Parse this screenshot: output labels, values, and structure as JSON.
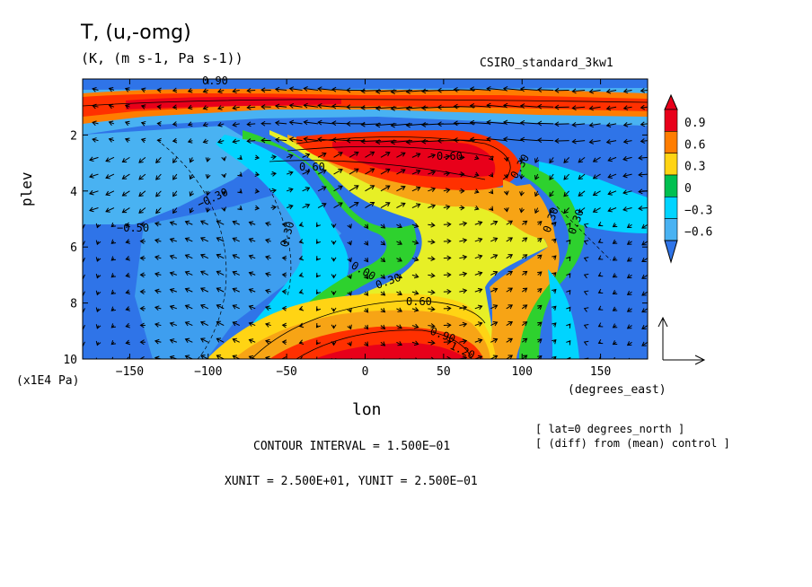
{
  "chart_data": {
    "type": "heatmap",
    "title": "T, (u,-omg)",
    "units_line": "(K, (m s-1, Pa s-1))",
    "source_label": "CSIRO_standard_3kw1",
    "xlabel": "lon",
    "ylabel": "plev",
    "x_units": "(degrees_east)",
    "y_units": "(x1E4 Pa)",
    "xlim": [
      -180,
      180
    ],
    "ylim": [
      10,
      0
    ],
    "x_ticks": [
      -150,
      -100,
      -50,
      0,
      50,
      100,
      150
    ],
    "x_tick_labels": [
      "−150",
      "−100",
      "−50",
      "0",
      "50",
      "100",
      "150"
    ],
    "y_ticks": [
      2,
      4,
      6,
      8,
      10
    ],
    "y_tick_labels": [
      "2",
      "4",
      "6",
      "8",
      "10"
    ],
    "colorbar": {
      "levels": [
        -0.6,
        -0.3,
        0,
        0.3,
        0.6,
        0.9
      ],
      "labels": [
        "−0.6",
        "−0.3",
        "0",
        "0.3",
        "0.6",
        "0.9"
      ],
      "colors": [
        "#2f74e8",
        "#49b2f2",
        "#40c8f2",
        "#00d4ff",
        "#2ed12e",
        "#00c050",
        "#e7ef26",
        "#ffd414",
        "#f7a415",
        "#ff7d00",
        "#ff3000",
        "#e8001a"
      ]
    },
    "contour_labels": [
      "0.60",
      "0.60",
      "0.30",
      "0.00",
      "0.30",
      "0.60",
      "0.90",
      "1.20",
      "0.30",
      "0.30",
      "0.30",
      "−0.30",
      "−0.50",
      "0.90"
    ],
    "notes": [
      "[ lat=0 degrees_north ]",
      "[ (diff) from (mean) control ]"
    ],
    "contour_interval": "CONTOUR INTERVAL = 1.500E−01",
    "vector_units": "XUNIT = 2.500E+01, YUNIT = 2.500E−01"
  }
}
